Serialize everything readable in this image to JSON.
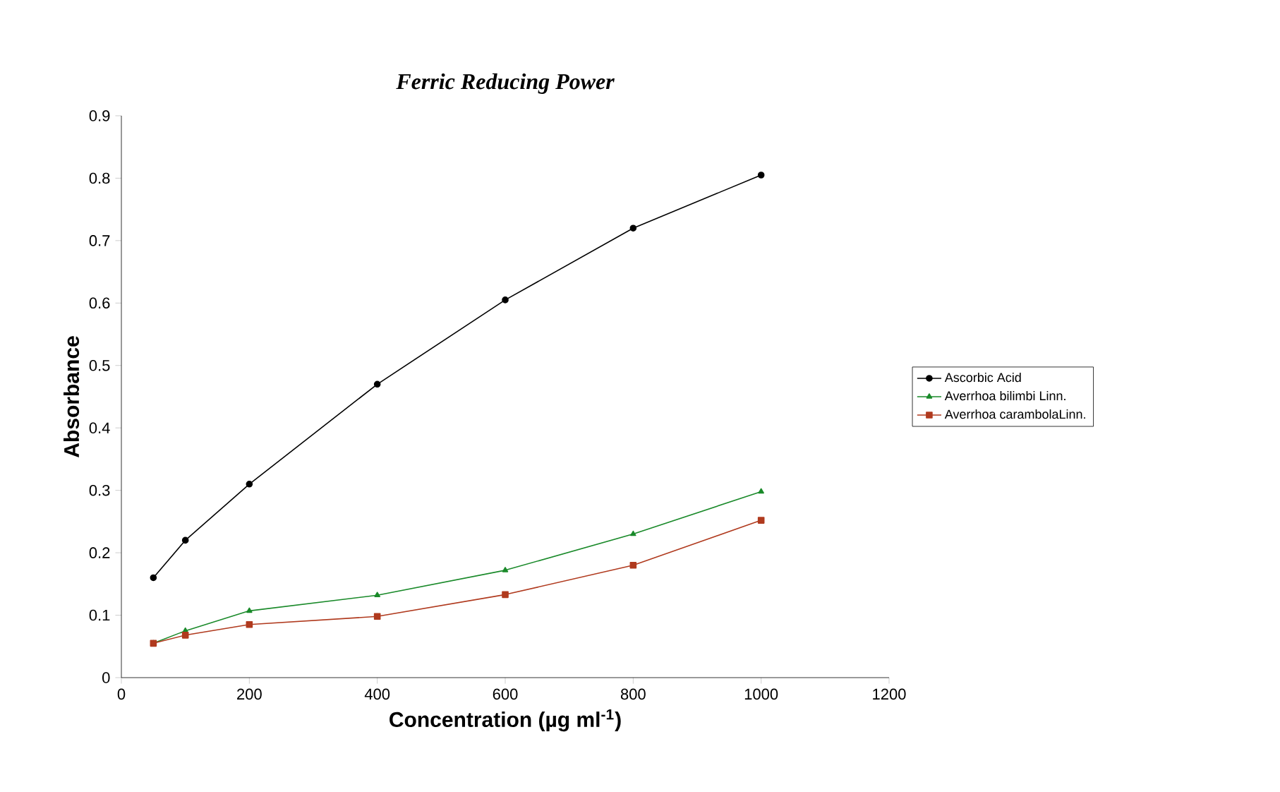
{
  "chart_data": {
    "type": "line",
    "title": "Ferric Reducing Power",
    "xlabel": "Concentration  (µg ml$^{-1}$)",
    "ylabel": "Absorbance",
    "x": [
      50,
      100,
      200,
      400,
      600,
      800,
      1000
    ],
    "series": [
      {
        "name": "Ascorbic Acid",
        "color": "#000000",
        "marker": "circle",
        "values": [
          0.16,
          0.22,
          0.31,
          0.47,
          0.605,
          0.72,
          0.805
        ]
      },
      {
        "name": "Averrhoa bilimbi Linn.",
        "color": "#1a8a2a",
        "marker": "triangle",
        "values": [
          0.055,
          0.075,
          0.107,
          0.132,
          0.172,
          0.23,
          0.298
        ]
      },
      {
        "name": "Averrhoa carambolaLinn.",
        "color": "#b03a1e",
        "marker": "square",
        "values": [
          0.055,
          0.068,
          0.085,
          0.098,
          0.133,
          0.18,
          0.252
        ]
      }
    ],
    "xlim": [
      0,
      1200
    ],
    "xticks": [
      0,
      200,
      400,
      600,
      800,
      1000,
      1200
    ],
    "ylim": [
      0,
      0.9
    ],
    "yticks": [
      0,
      0.1,
      0.2,
      0.3,
      0.4,
      0.5,
      0.6,
      0.7,
      0.8,
      0.9
    ],
    "legend": "right",
    "grid": false,
    "line_style": "solid"
  }
}
